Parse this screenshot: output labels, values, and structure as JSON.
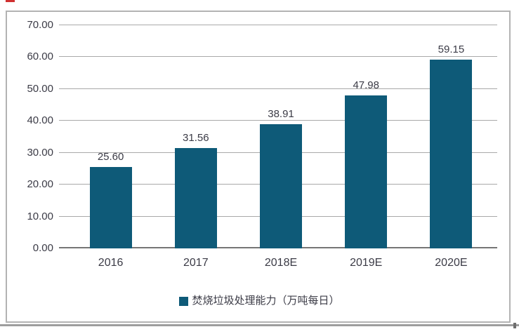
{
  "colors": {
    "bar": "#0e5a78",
    "grid": "#a9a9a9",
    "axis": "#767676",
    "text": "#3b3b46",
    "frame_border": "#b3b3b3",
    "red_mark": "#d03030",
    "bottom_rule": "#9e9e9e"
  },
  "chart_data": {
    "type": "bar",
    "categories": [
      "2016",
      "2017",
      "2018E",
      "2019E",
      "2020E"
    ],
    "values": [
      25.6,
      31.56,
      38.91,
      47.98,
      59.15
    ],
    "value_labels": [
      "25.60",
      "31.56",
      "38.91",
      "47.98",
      "59.15"
    ],
    "title": "",
    "xlabel": "",
    "ylabel": "",
    "ylim": [
      0,
      70
    ],
    "ytick_interval": 10,
    "ytick_labels": [
      "0.00",
      "10.00",
      "20.00",
      "30.00",
      "40.00",
      "50.00",
      "60.00",
      "70.00"
    ],
    "grid": true,
    "bar_color": "#0e5a78",
    "legend": {
      "position": "bottom",
      "entries": [
        "焚烧垃圾处理能力（万吨每日）"
      ]
    }
  }
}
